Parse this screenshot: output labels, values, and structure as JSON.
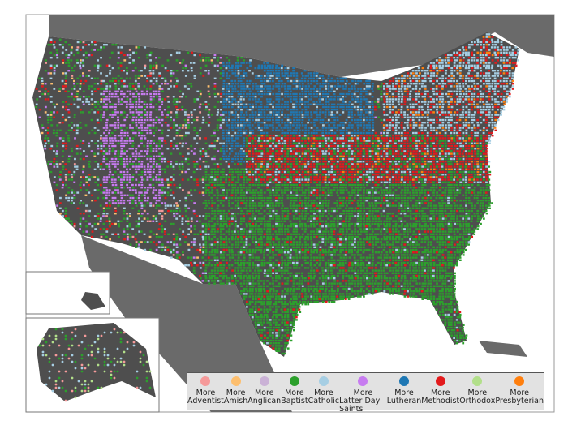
{
  "map": {
    "land_color": "#4e4e4e",
    "neighbor_land_color": "#6a6a6a",
    "water_color": "#ffffff"
  },
  "legend": [
    {
      "line1": "More",
      "line2": "Adventist",
      "color": "#f59a9a"
    },
    {
      "line1": "More",
      "line2": "Amish",
      "color": "#fdbf6f"
    },
    {
      "line1": "More",
      "line2": "Anglican",
      "color": "#cab2d6"
    },
    {
      "line1": "More",
      "line2": "Baptist",
      "color": "#2ca02c"
    },
    {
      "line1": "More",
      "line2": "Catholic",
      "color": "#a6cee3"
    },
    {
      "line1": "More",
      "line2": "Latter Day Saints",
      "color": "#c77cf0"
    },
    {
      "line1": "More",
      "line2": "Lutheran",
      "color": "#1f78b4"
    },
    {
      "line1": "More",
      "line2": "Methodist",
      "color": "#e31a1c"
    },
    {
      "line1": "More",
      "line2": "Orthodox",
      "color": "#b2df8a"
    },
    {
      "line1": "More",
      "line2": "Presbyterian",
      "color": "#ff7f0e"
    }
  ]
}
